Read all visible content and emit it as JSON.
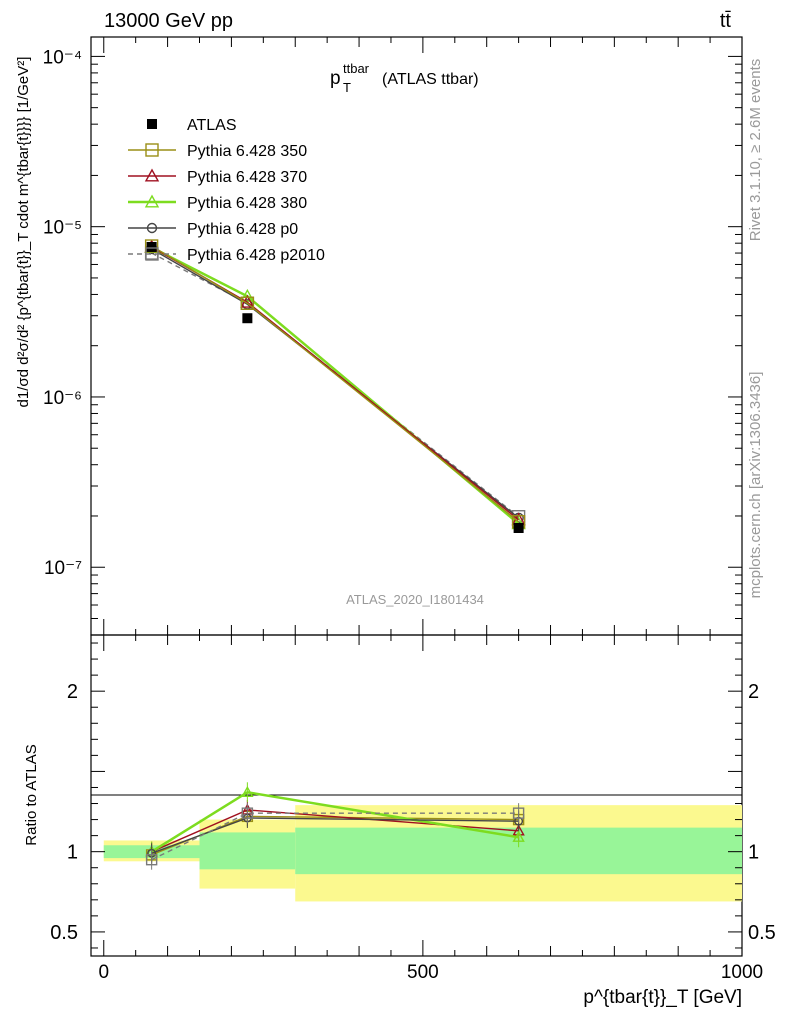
{
  "header": {
    "left": "13000 GeV pp",
    "right": "tt̄"
  },
  "plot": {
    "title_main": "p",
    "title_sup": "ttbar",
    "title_sub": "T",
    "title_suffix": "(ATLAS ttbar)",
    "watermark": "ATLAS_2020_I1801434",
    "ylabel_top": "d1/σd d²σ/d² {p^{tbar{t}}_T cdot m^{tbar{t}}}} [1/GeV²]",
    "ylabel_bottom": "Ratio to ATLAS",
    "xlabel": "p^{tbar{t}}_T [GeV]",
    "side_right_top": "Rivet 3.1.10, ≥ 2.6M events",
    "side_right_bottom": "mcplots.cern.ch [arXiv:1306.3436]"
  },
  "legend": [
    {
      "label": "ATLAS",
      "color": "#000000",
      "marker": "filled-square",
      "line": "none"
    },
    {
      "label": "Pythia 6.428 350",
      "color": "#9a8f16",
      "marker": "open-square",
      "line": "solid"
    },
    {
      "label": "Pythia 6.428 370",
      "color": "#a01020",
      "marker": "open-triangle",
      "line": "solid"
    },
    {
      "label": "Pythia 6.428 380",
      "color": "#7ddc1f",
      "marker": "open-triangle",
      "line": "solid"
    },
    {
      "label": "Pythia 6.428 p0",
      "color": "#454545",
      "marker": "open-circle",
      "line": "solid"
    },
    {
      "label": "Pythia 6.428 p2010",
      "color": "#7a7a7a",
      "marker": "open-square",
      "line": "dashed"
    }
  ],
  "chart_data": [
    {
      "type": "line",
      "panel": "main",
      "x": [
        75,
        225,
        650
      ],
      "xlim": [
        -20,
        1000
      ],
      "ylim": [
        4e-08,
        0.00013
      ],
      "yscale": "log",
      "x_ticks": [
        0,
        500,
        1000
      ],
      "y_ticks": [
        1e-07,
        1e-06,
        1e-05,
        0.0001
      ],
      "y_tick_labels": [
        "10⁻⁷",
        "10⁻⁶",
        "10⁻⁵",
        "10⁻⁴"
      ],
      "series": [
        {
          "name": "ATLAS",
          "values": [
            7.6e-06,
            2.9e-06,
            1.7e-07
          ]
        },
        {
          "name": "Pythia 6.428 350",
          "values": [
            7.7e-06,
            3.55e-06,
            1.85e-07
          ]
        },
        {
          "name": "Pythia 6.428 370",
          "values": [
            7.6e-06,
            3.6e-06,
            1.9e-07
          ]
        },
        {
          "name": "Pythia 6.428 380",
          "values": [
            7.55e-06,
            3.9e-06,
            1.8e-07
          ]
        },
        {
          "name": "Pythia 6.428 p0",
          "values": [
            7.4e-06,
            3.5e-06,
            1.95e-07
          ]
        },
        {
          "name": "Pythia 6.428 p2010",
          "values": [
            7e-06,
            3.55e-06,
            1.98e-07
          ]
        }
      ]
    },
    {
      "type": "line",
      "panel": "ratio",
      "ylabel": "Ratio to ATLAS",
      "x": [
        75,
        225,
        650
      ],
      "xlim": [
        -20,
        1000
      ],
      "ylim": [
        0.35,
        2.35
      ],
      "y_ticks": [
        0.5,
        1,
        2
      ],
      "y_tick_labels": [
        "0.5",
        "1",
        "2"
      ],
      "bands": [
        {
          "x0": 0,
          "x1": 150,
          "inner": [
            0.96,
            1.04
          ],
          "outer": [
            0.94,
            1.07
          ]
        },
        {
          "x0": 150,
          "x1": 300,
          "inner": [
            0.89,
            1.12
          ],
          "outer": [
            0.77,
            1.2
          ]
        },
        {
          "x0": 300,
          "x1": 1000,
          "inner": [
            0.86,
            1.15
          ],
          "outer": [
            0.69,
            1.29
          ]
        }
      ],
      "series": [
        {
          "name": "Pythia 6.428 350",
          "values": [
            0.98,
            1.22,
            1.2
          ]
        },
        {
          "name": "Pythia 6.428 370",
          "values": [
            1.0,
            1.26,
            1.13
          ]
        },
        {
          "name": "Pythia 6.428 380",
          "values": [
            1.0,
            1.37,
            1.09
          ]
        },
        {
          "name": "Pythia 6.428 p0",
          "values": [
            0.99,
            1.21,
            1.19
          ]
        },
        {
          "name": "Pythia 6.428 p2010",
          "values": [
            0.95,
            1.24,
            1.24
          ]
        }
      ]
    }
  ]
}
